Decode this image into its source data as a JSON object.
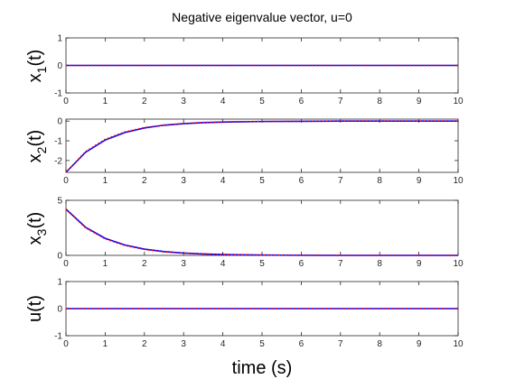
{
  "figure_title": "Negative eigenvalue vector, u=0",
  "xlabel": "time (s)",
  "colors": {
    "solid": "#0000ff",
    "dotted": "#ff0000",
    "axes": "#262626"
  },
  "chart_data": [
    {
      "type": "line",
      "ylabel": {
        "main": "x",
        "sub": "1",
        "suffix": "(t)"
      },
      "xlim": [
        0,
        10
      ],
      "ylim": [
        -1,
        1
      ],
      "xticks": [
        "0",
        "1",
        "2",
        "3",
        "4",
        "5",
        "6",
        "7",
        "8",
        "9",
        "10"
      ],
      "yticks": [
        "1",
        "0",
        "-1"
      ],
      "series": [
        {
          "style": "solid",
          "x": [
            0,
            10
          ],
          "y": [
            0,
            0
          ]
        },
        {
          "style": "dotted",
          "x": [
            0,
            10
          ],
          "y": [
            0,
            0
          ]
        }
      ]
    },
    {
      "type": "line",
      "ylabel": {
        "main": "x",
        "sub": "2",
        "suffix": "(t)"
      },
      "xlim": [
        0,
        10
      ],
      "ylim": [
        -2.6,
        0.1
      ],
      "xticks": [
        "0",
        "1",
        "2",
        "3",
        "4",
        "5",
        "6",
        "7",
        "8",
        "9",
        "10"
      ],
      "yticks": [
        "0",
        "-1",
        "-2"
      ],
      "series": [
        {
          "style": "solid",
          "x": [
            0,
            0.5,
            1,
            1.5,
            2,
            2.5,
            3,
            3.5,
            4,
            5,
            6,
            7,
            8,
            9,
            10
          ],
          "y": [
            -2.6,
            -1.58,
            -0.96,
            -0.58,
            -0.35,
            -0.21,
            -0.13,
            -0.08,
            -0.05,
            -0.02,
            -0.01,
            0,
            0,
            0,
            0
          ]
        },
        {
          "style": "dotted",
          "x": [
            0,
            0.5,
            1,
            1.5,
            2,
            2.5,
            3,
            3.5,
            4,
            5,
            6,
            7,
            8,
            9,
            10
          ],
          "y": [
            -2.6,
            -1.55,
            -0.92,
            -0.55,
            -0.33,
            -0.2,
            -0.12,
            -0.07,
            -0.04,
            -0.02,
            -0.01,
            0,
            0,
            0,
            0
          ]
        }
      ]
    },
    {
      "type": "line",
      "ylabel": {
        "main": "x",
        "sub": "3",
        "suffix": "(t)"
      },
      "xlim": [
        0,
        10
      ],
      "ylim": [
        0,
        5
      ],
      "xticks": [
        "0",
        "1",
        "2",
        "3",
        "4",
        "5",
        "6",
        "7",
        "8",
        "9",
        "10"
      ],
      "yticks": [
        "5",
        "0"
      ],
      "series": [
        {
          "style": "solid",
          "x": [
            0,
            0.5,
            1,
            1.5,
            2,
            2.5,
            3,
            3.5,
            4,
            5,
            6,
            7,
            8,
            9,
            10
          ],
          "y": [
            4.2,
            2.55,
            1.55,
            0.94,
            0.57,
            0.34,
            0.21,
            0.13,
            0.08,
            0.03,
            0.01,
            0,
            0,
            0,
            0
          ]
        },
        {
          "style": "dotted",
          "x": [
            0,
            0.5,
            1,
            1.5,
            2,
            2.5,
            3,
            3.5,
            4,
            5,
            6,
            7,
            8,
            9,
            10
          ],
          "y": [
            4.2,
            2.5,
            1.5,
            0.9,
            0.54,
            0.32,
            0.2,
            0.12,
            0.07,
            0.03,
            0.01,
            0,
            0,
            0,
            0
          ]
        }
      ]
    },
    {
      "type": "line",
      "ylabel": {
        "main": "u",
        "sub": "",
        "suffix": "(t)"
      },
      "xlim": [
        0,
        10
      ],
      "ylim": [
        -1,
        1
      ],
      "xticks": [
        "0",
        "1",
        "2",
        "3",
        "4",
        "5",
        "6",
        "7",
        "8",
        "9",
        "10"
      ],
      "yticks": [
        "1",
        "0",
        "-1"
      ],
      "series": [
        {
          "style": "solid",
          "x": [
            0,
            10
          ],
          "y": [
            0,
            0
          ]
        },
        {
          "style": "dotted",
          "x": [
            0,
            10
          ],
          "y": [
            0,
            0
          ]
        }
      ]
    }
  ]
}
